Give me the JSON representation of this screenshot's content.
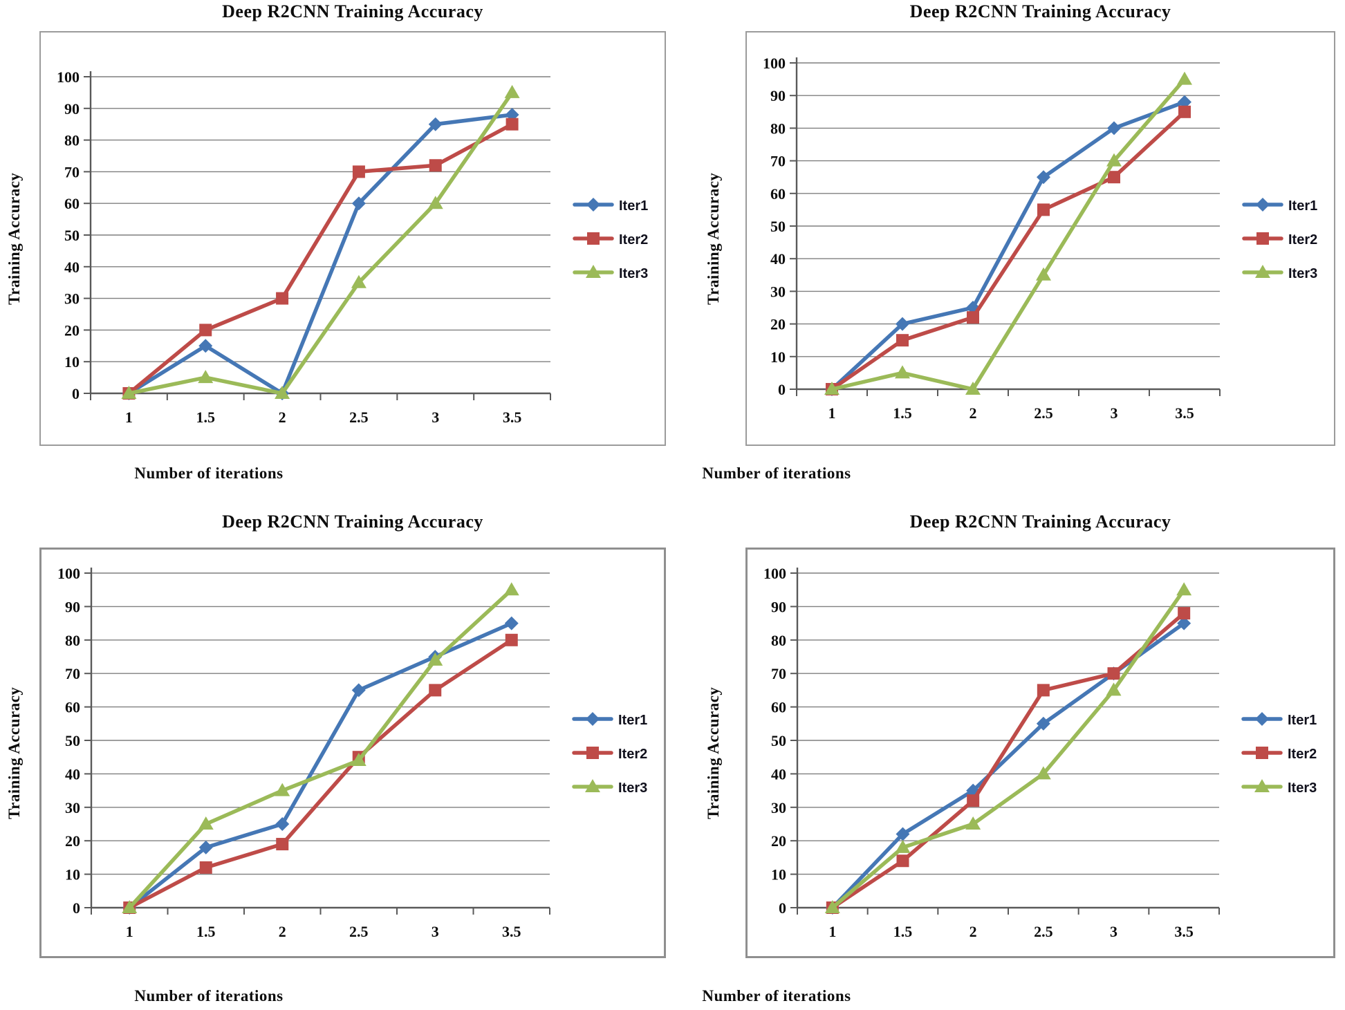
{
  "page": {
    "background": "#ffffff"
  },
  "palette": {
    "iter1_blue": "#4577B5",
    "iter2_red": "#BE4B48",
    "iter3_green": "#9BBA58",
    "gridline": "#7F7F7F",
    "axis": "#595959",
    "frame_border": "#9B9B9B",
    "text": "#0D0D0D"
  },
  "chart_data": [
    {
      "position": "top-left",
      "type": "line",
      "title": "Deep R2CNN Training Accuracy",
      "xlabel": "Number of iterations",
      "ylabel": "Training Accuracy",
      "x": [
        1,
        1.5,
        2,
        2.5,
        3,
        3.5
      ],
      "x_tick_labels": [
        "1",
        "1.5",
        "2",
        "2.5",
        "3",
        "3.5"
      ],
      "y_ticks": [
        0,
        10,
        20,
        30,
        40,
        50,
        60,
        70,
        80,
        90,
        100
      ],
      "ylim": [
        0,
        100
      ],
      "grid": true,
      "legend_position": "right",
      "series": [
        {
          "name": "Iter1",
          "marker": "diamond",
          "color": "#4577B5",
          "values": [
            0,
            15,
            0,
            60,
            85,
            88
          ]
        },
        {
          "name": "Iter2",
          "marker": "square",
          "color": "#BE4B48",
          "values": [
            0,
            20,
            30,
            70,
            72,
            85
          ]
        },
        {
          "name": "Iter3",
          "marker": "triangle",
          "color": "#9BBA58",
          "values": [
            0,
            5,
            0,
            35,
            60,
            95
          ]
        }
      ]
    },
    {
      "position": "top-right",
      "type": "line",
      "title": "Deep R2CNN Training Accuracy",
      "xlabel": "Number of iterations",
      "ylabel": "Training Accuracy",
      "x": [
        1,
        1.5,
        2,
        2.5,
        3,
        3.5
      ],
      "x_tick_labels": [
        "1",
        "1.5",
        "2",
        "2.5",
        "3",
        "3.5"
      ],
      "y_ticks": [
        0,
        10,
        20,
        30,
        40,
        50,
        60,
        70,
        80,
        90,
        100
      ],
      "ylim": [
        0,
        100
      ],
      "grid": true,
      "legend_position": "right",
      "series": [
        {
          "name": "Iter1",
          "marker": "diamond",
          "color": "#4577B5",
          "values": [
            0,
            20,
            25,
            65,
            80,
            88
          ]
        },
        {
          "name": "Iter2",
          "marker": "square",
          "color": "#BE4B48",
          "values": [
            0,
            15,
            22,
            55,
            65,
            85
          ]
        },
        {
          "name": "Iter3",
          "marker": "triangle",
          "color": "#9BBA58",
          "values": [
            0,
            5,
            0,
            35,
            70,
            95
          ]
        }
      ]
    },
    {
      "position": "bottom-left",
      "type": "line",
      "title": "Deep R2CNN Training Accuracy",
      "xlabel": "Number of iterations",
      "ylabel": "Training Accuracy",
      "x": [
        1,
        1.5,
        2,
        2.5,
        3,
        3.5
      ],
      "x_tick_labels": [
        "1",
        "1.5",
        "2",
        "2.5",
        "3",
        "3.5"
      ],
      "y_ticks": [
        0,
        10,
        20,
        30,
        40,
        50,
        60,
        70,
        80,
        90,
        100
      ],
      "ylim": [
        0,
        100
      ],
      "grid": true,
      "legend_position": "right",
      "series": [
        {
          "name": "Iter1",
          "marker": "diamond",
          "color": "#4577B5",
          "values": [
            0,
            18,
            25,
            65,
            75,
            85
          ]
        },
        {
          "name": "Iter2",
          "marker": "square",
          "color": "#BE4B48",
          "values": [
            0,
            12,
            19,
            45,
            65,
            80
          ]
        },
        {
          "name": "Iter3",
          "marker": "triangle",
          "color": "#9BBA58",
          "values": [
            0,
            25,
            35,
            44,
            74,
            95
          ]
        }
      ]
    },
    {
      "position": "bottom-right",
      "type": "line",
      "title": "Deep R2CNN Training Accuracy",
      "xlabel": "Number of iterations",
      "ylabel": "Training Accuracy",
      "x": [
        1,
        1.5,
        2,
        2.5,
        3,
        3.5
      ],
      "x_tick_labels": [
        "1",
        "1.5",
        "2",
        "2.5",
        "3",
        "3.5"
      ],
      "y_ticks": [
        0,
        10,
        20,
        30,
        40,
        50,
        60,
        70,
        80,
        90,
        100
      ],
      "ylim": [
        0,
        100
      ],
      "grid": true,
      "legend_position": "right",
      "series": [
        {
          "name": "Iter1",
          "marker": "diamond",
          "color": "#4577B5",
          "values": [
            0,
            22,
            35,
            55,
            70,
            85
          ]
        },
        {
          "name": "Iter2",
          "marker": "square",
          "color": "#BE4B48",
          "values": [
            0,
            14,
            32,
            65,
            70,
            88
          ]
        },
        {
          "name": "Iter3",
          "marker": "triangle",
          "color": "#9BBA58",
          "values": [
            0,
            18,
            25,
            40,
            65,
            95
          ]
        }
      ]
    }
  ]
}
